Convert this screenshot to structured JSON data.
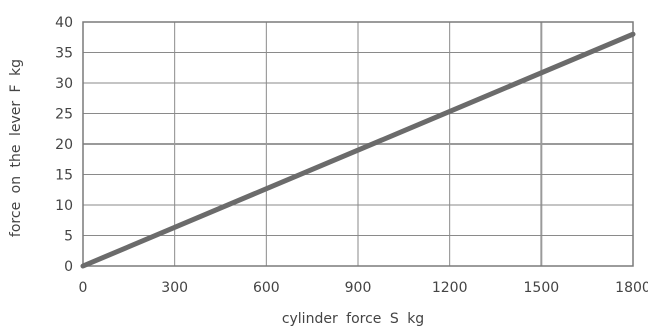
{
  "chart_data": {
    "type": "line",
    "title": "",
    "xlabel": "cylinder  force  S  kg",
    "ylabel": "force  on the  lever  F  kg",
    "xlim": [
      0,
      1800
    ],
    "ylim": [
      0,
      40
    ],
    "x_ticks": [
      0,
      300,
      600,
      900,
      1200,
      1500,
      1800
    ],
    "y_ticks": [
      0,
      5,
      10,
      15,
      20,
      25,
      30,
      35,
      40
    ],
    "x_tick_labels": [
      "0",
      "300",
      "600",
      "900",
      "1200",
      "1500",
      "1800"
    ],
    "y_tick_labels": [
      "0",
      "5",
      "10",
      "15",
      "20",
      "25",
      "30",
      "35",
      "40"
    ],
    "grid": true,
    "emphasized_gridlines": {
      "x": [
        1500
      ],
      "y": [
        20
      ]
    },
    "legend": "none",
    "series": [
      {
        "color": "#6b6b6b",
        "points": [
          {
            "x": 0,
            "y": 0
          },
          {
            "x": 1800,
            "y": 38
          }
        ]
      }
    ]
  }
}
